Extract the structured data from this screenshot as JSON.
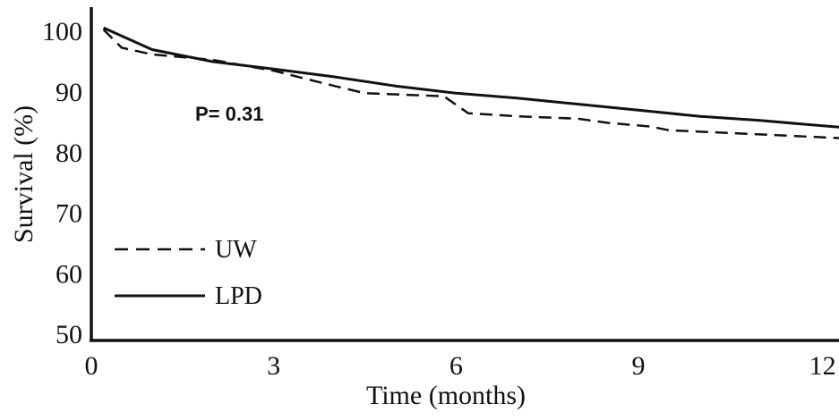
{
  "chart_data": {
    "type": "line",
    "xlabel": "Time (months)",
    "ylabel": "Survival (%)",
    "xlim": [
      0,
      12.3
    ],
    "ylim": [
      49,
      104
    ],
    "xticks": [
      "0",
      "3",
      "6",
      "9",
      "12"
    ],
    "yticks": [
      "50",
      "60",
      "70",
      "80",
      "90",
      "100"
    ],
    "annotation": "P= 0.31",
    "legend_position": "bottom-left",
    "grid": false,
    "series": [
      {
        "name": "UW",
        "style": "dashed",
        "color": "#111111",
        "points": [
          [
            0.2,
            100.3
          ],
          [
            0.5,
            97.3
          ],
          [
            1.0,
            96.2
          ],
          [
            2.0,
            95.3
          ],
          [
            3.0,
            93.5
          ],
          [
            4.0,
            91.0
          ],
          [
            4.5,
            89.8
          ],
          [
            5.8,
            89.3
          ],
          [
            6.2,
            86.5
          ],
          [
            7.0,
            86.0
          ],
          [
            8.0,
            85.6
          ],
          [
            8.5,
            84.9
          ],
          [
            9.2,
            84.3
          ],
          [
            9.5,
            83.7
          ],
          [
            11.0,
            83.0
          ],
          [
            12.3,
            82.4
          ]
        ]
      },
      {
        "name": "LPD",
        "style": "solid",
        "color": "#111111",
        "points": [
          [
            0.2,
            100.6
          ],
          [
            1.0,
            97.0
          ],
          [
            2.0,
            95.0
          ],
          [
            3.0,
            93.8
          ],
          [
            4.0,
            92.5
          ],
          [
            5.0,
            91.0
          ],
          [
            6.0,
            89.8
          ],
          [
            7.0,
            89.0
          ],
          [
            8.0,
            88.0
          ],
          [
            9.0,
            87.0
          ],
          [
            10.0,
            86.0
          ],
          [
            11.0,
            85.3
          ],
          [
            12.3,
            84.2
          ]
        ]
      }
    ]
  }
}
